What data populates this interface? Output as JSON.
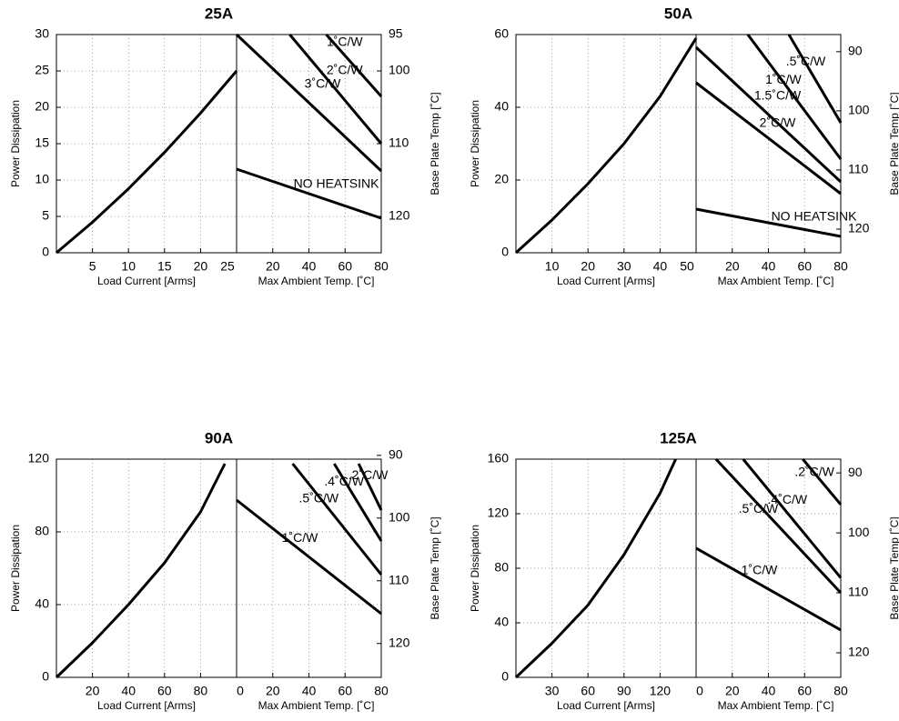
{
  "chart_data": [
    {
      "type": "line",
      "title": "25A",
      "xlabel": "Load Current  [Arms]",
      "ylabel": "Power Dissipation",
      "xlim": [
        0,
        25
      ],
      "xticks": [
        5,
        10,
        15,
        20,
        25
      ],
      "ylim": [
        0,
        30
      ],
      "yticks": [
        0,
        5,
        10,
        15,
        20,
        25,
        30
      ],
      "x": [
        0,
        5,
        10,
        15,
        20,
        25
      ],
      "values": [
        0,
        4.2,
        8.8,
        13.8,
        19.2,
        25
      ],
      "grid": true,
      "color": "#000000",
      "right": {
        "xlabel": "Max Ambient Temp. [˚C]",
        "y2label": "Base Plate Temp [˚C]",
        "xlim": [
          0,
          80
        ],
        "xticks": [
          20,
          40,
          60,
          80
        ],
        "y2lim": [
          125,
          95
        ],
        "y2ticks": [
          95,
          100,
          110,
          120
        ],
        "series": [
          {
            "name": "NO HEATSINK",
            "x": [
              0,
              80
            ],
            "values": [
              11.5,
              4.75
            ]
          },
          {
            "name": "3˚C/W",
            "x": [
              0,
              80
            ],
            "values": [
              30,
              11.25
            ]
          },
          {
            "name": "2˚C/W",
            "x": [
              29.4,
              80
            ],
            "values": [
              30,
              15
            ]
          },
          {
            "name": "1˚C/W",
            "x": [
              49.6,
              80
            ],
            "values": [
              30,
              21.5
            ]
          }
        ]
      }
    },
    {
      "type": "line",
      "title": "50A",
      "xlabel": "Load Current  [Arms]",
      "ylabel": "Power Dissipation",
      "xlim": [
        0,
        50
      ],
      "xticks": [
        10,
        20,
        30,
        40,
        50
      ],
      "ylim": [
        0,
        60
      ],
      "yticks": [
        0,
        20,
        40,
        60
      ],
      "x": [
        0,
        10,
        20,
        30,
        40,
        50
      ],
      "values": [
        0,
        9,
        19,
        30,
        43,
        59
      ],
      "grid": true,
      "color": "#000000",
      "right": {
        "xlabel": "Max Ambient Temp. [˚C]",
        "y2label": "Base Plate Temp [˚C]",
        "xlim": [
          0,
          80
        ],
        "xticks": [
          20,
          40,
          60,
          80
        ],
        "y2lim": [
          124,
          87.1
        ],
        "y2ticks": [
          90,
          100,
          110,
          120
        ],
        "series": [
          {
            "name": "NO HEATSINK",
            "x": [
              0,
              80
            ],
            "values": [
              12,
              4.5
            ]
          },
          {
            "name": "2˚C/W",
            "x": [
              0,
              80
            ],
            "values": [
              46.75,
              16.25
            ]
          },
          {
            "name": "1.5˚C/W",
            "x": [
              0,
              80
            ],
            "values": [
              56.5,
              19.5
            ]
          },
          {
            "name": "1˚C/W",
            "x": [
              28.6,
              80
            ],
            "values": [
              60,
              25.75
            ]
          },
          {
            "name": ".5˚C/W",
            "x": [
              51.3,
              80
            ],
            "values": [
              60,
              35.75
            ]
          }
        ]
      }
    },
    {
      "type": "line",
      "title": "90A",
      "xlabel": "Load Current  [Arms]",
      "ylabel": "Power Dissipation",
      "xlim": [
        0,
        100
      ],
      "xticks": [
        20,
        40,
        60,
        80
      ],
      "ylim": [
        0,
        120
      ],
      "yticks": [
        0,
        40,
        80,
        120
      ],
      "x": [
        0,
        20,
        40,
        60,
        80,
        93.5
      ],
      "values": [
        0,
        19,
        40,
        63,
        91,
        117.5
      ],
      "grid": true,
      "color": "#000000",
      "right": {
        "xlabel": "Max Ambient Temp. [˚C]",
        "y2label": "Base Plate Temp [˚C]",
        "xlim": [
          0,
          80
        ],
        "xticks": [
          0,
          20,
          40,
          60,
          80
        ],
        "y2lim": [
          125.4,
          90.6
        ],
        "y2ticks": [
          90,
          100,
          110,
          120
        ],
        "series": [
          {
            "name": "1˚C/W",
            "x": [
              0,
              80
            ],
            "values": [
              97.5,
              35
            ]
          },
          {
            "name": ".5˚C/W",
            "x": [
              31,
              80
            ],
            "values": [
              117.5,
              56.5
            ]
          },
          {
            "name": ".4˚C/W",
            "x": [
              54,
              80
            ],
            "values": [
              117.5,
              75
            ]
          },
          {
            "name": ".2˚C/W",
            "x": [
              67.5,
              80
            ],
            "values": [
              117.5,
              92
            ]
          }
        ]
      }
    },
    {
      "type": "line",
      "title": "125A",
      "xlabel": "Load Current  [Arms]",
      "ylabel": "Power Dissipation",
      "xlim": [
        0,
        150
      ],
      "xticks": [
        30,
        60,
        90,
        120
      ],
      "ylim": [
        0,
        160
      ],
      "yticks": [
        0,
        40,
        80,
        120,
        160
      ],
      "x": [
        0,
        30,
        60,
        90,
        120,
        133
      ],
      "values": [
        0,
        25,
        53,
        90,
        135,
        160
      ],
      "grid": true,
      "color": "#000000",
      "right": {
        "xlabel": "Max Ambient Temp. [˚C]",
        "y2label": "Base Plate Temp [˚C]",
        "xlim": [
          0,
          80
        ],
        "xticks": [
          0,
          20,
          40,
          60,
          80
        ],
        "y2lim": [
          124.1,
          87.7
        ],
        "y2ticks": [
          90,
          100,
          110,
          120
        ],
        "series": [
          {
            "name": "1˚C/W",
            "x": [
              0,
              80
            ],
            "values": [
              94.7,
              34.7
            ]
          },
          {
            "name": ".5˚C/W",
            "x": [
              11,
              80
            ],
            "values": [
              160,
              62
            ]
          },
          {
            "name": ".4˚C/W",
            "x": [
              26,
              80
            ],
            "values": [
              160,
              73
            ]
          },
          {
            "name": ".2˚C/W",
            "x": [
              59,
              80
            ],
            "values": [
              160,
              126.7
            ]
          }
        ]
      }
    }
  ]
}
